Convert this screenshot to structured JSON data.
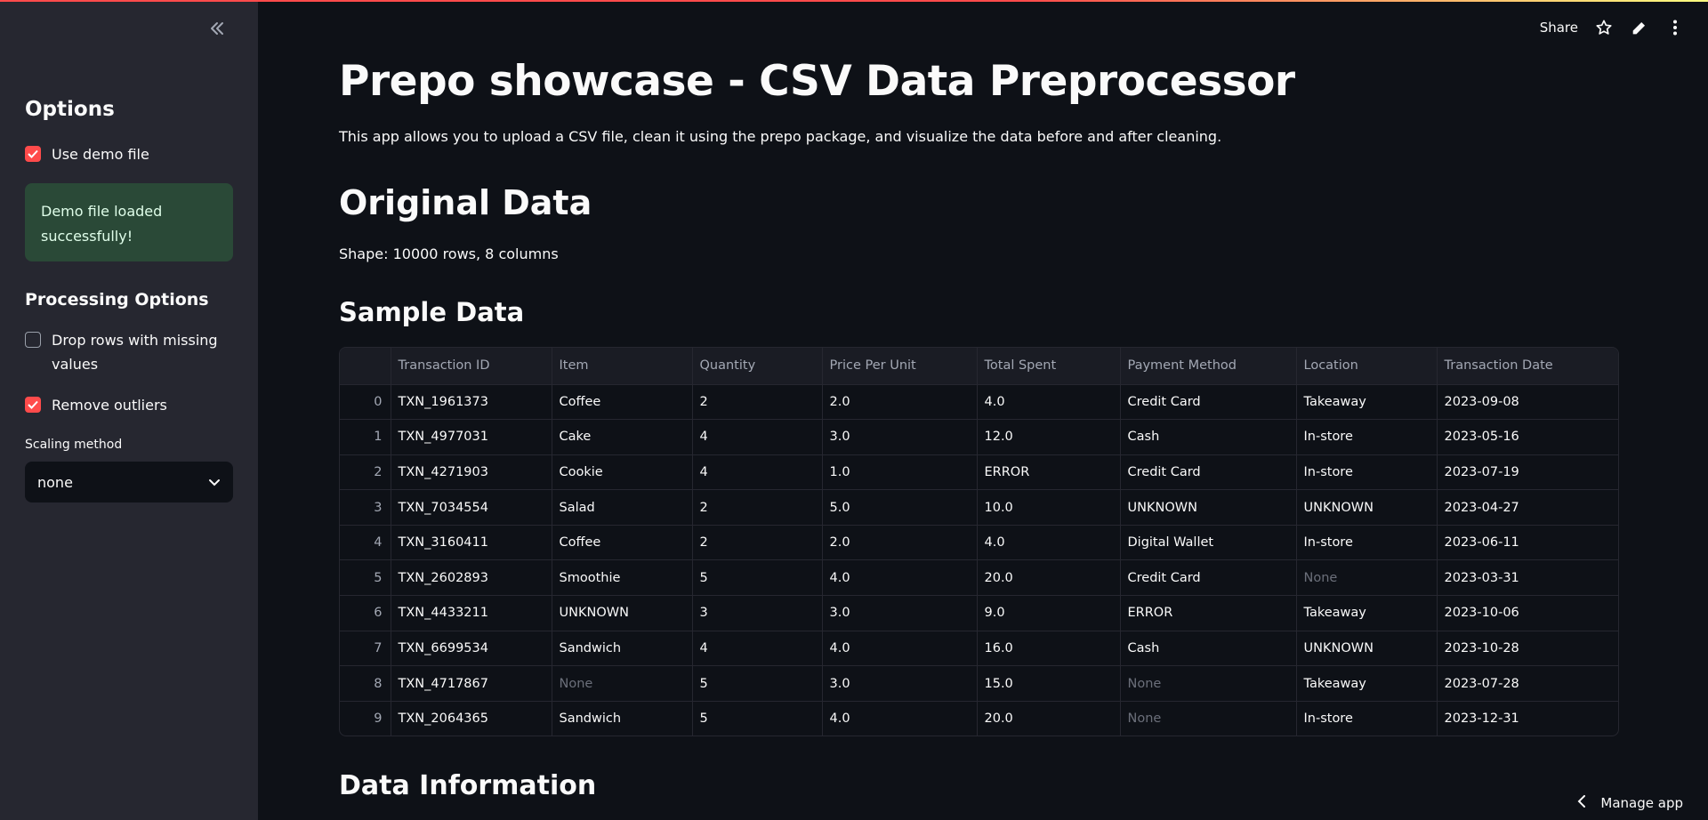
{
  "sidebar": {
    "options_heading": "Options",
    "use_demo_label": "Use demo file",
    "use_demo_checked": true,
    "success_message": "Demo file loaded successfully!",
    "processing_heading": "Processing Options",
    "drop_missing_label": "Drop rows with missing values",
    "drop_missing_checked": false,
    "remove_outliers_label": "Remove outliers",
    "remove_outliers_checked": true,
    "scaling_label": "Scaling method",
    "scaling_value": "none",
    "collapse_icon": "double-chevron-left-icon"
  },
  "toolbar": {
    "share_label": "Share",
    "icons": [
      "star-icon",
      "pencil-icon",
      "more-vertical-icon"
    ]
  },
  "main": {
    "title": "Prepo showcase - CSV Data Preprocessor",
    "description": "This app allows you to upload a CSV file, clean it using the prepo package, and visualize the data before and after cleaning.",
    "original_heading": "Original Data",
    "shape_text": "Shape: 10000 rows, 8 columns",
    "sample_heading": "Sample Data",
    "info_heading": "Data Information"
  },
  "table": {
    "columns": [
      "",
      "Transaction ID",
      "Item",
      "Quantity",
      "Price Per Unit",
      "Total Spent",
      "Payment Method",
      "Location",
      "Transaction Date"
    ],
    "rows": [
      [
        "0",
        "TXN_1961373",
        "Coffee",
        "2",
        "2.0",
        "4.0",
        "Credit Card",
        "Takeaway",
        "2023-09-08"
      ],
      [
        "1",
        "TXN_4977031",
        "Cake",
        "4",
        "3.0",
        "12.0",
        "Cash",
        "In-store",
        "2023-05-16"
      ],
      [
        "2",
        "TXN_4271903",
        "Cookie",
        "4",
        "1.0",
        "ERROR",
        "Credit Card",
        "In-store",
        "2023-07-19"
      ],
      [
        "3",
        "TXN_7034554",
        "Salad",
        "2",
        "5.0",
        "10.0",
        "UNKNOWN",
        "UNKNOWN",
        "2023-04-27"
      ],
      [
        "4",
        "TXN_3160411",
        "Coffee",
        "2",
        "2.0",
        "4.0",
        "Digital Wallet",
        "In-store",
        "2023-06-11"
      ],
      [
        "5",
        "TXN_2602893",
        "Smoothie",
        "5",
        "4.0",
        "20.0",
        "Credit Card",
        "None",
        "2023-03-31"
      ],
      [
        "6",
        "TXN_4433211",
        "UNKNOWN",
        "3",
        "3.0",
        "9.0",
        "ERROR",
        "Takeaway",
        "2023-10-06"
      ],
      [
        "7",
        "TXN_6699534",
        "Sandwich",
        "4",
        "4.0",
        "16.0",
        "Cash",
        "UNKNOWN",
        "2023-10-28"
      ],
      [
        "8",
        "TXN_4717867",
        "None",
        "5",
        "3.0",
        "15.0",
        "None",
        "Takeaway",
        "2023-07-28"
      ],
      [
        "9",
        "TXN_2064365",
        "Sandwich",
        "5",
        "4.0",
        "20.0",
        "None",
        "In-store",
        "2023-12-31"
      ]
    ]
  },
  "footer": {
    "manage_label": "Manage app"
  },
  "colors": {
    "accent": "#ff4b4b",
    "background": "#0e1117",
    "sidebar": "#262730",
    "success_bg": "#2a4937"
  }
}
